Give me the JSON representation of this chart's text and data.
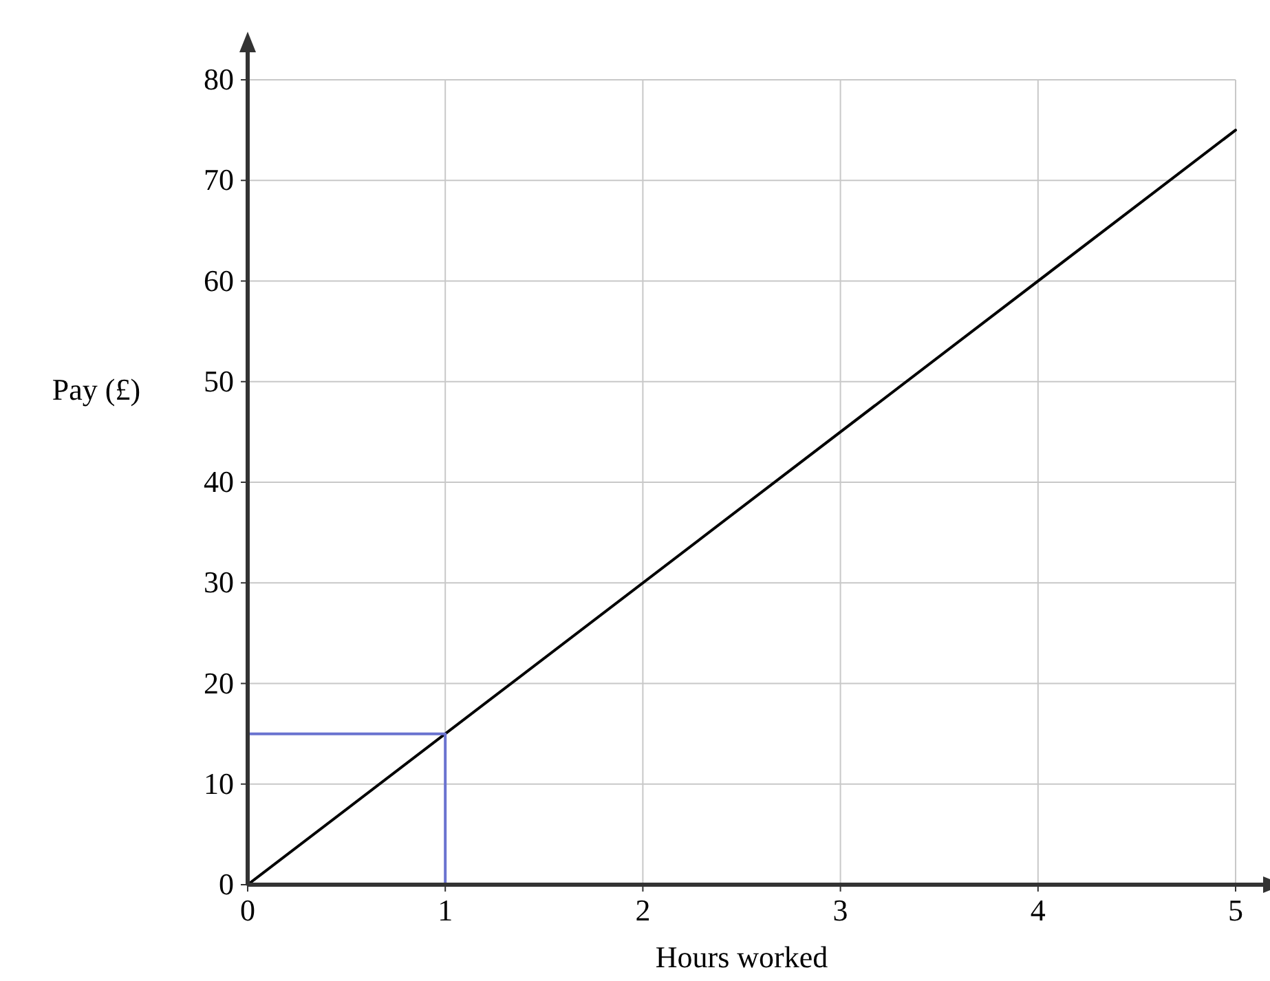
{
  "chart_data": {
    "type": "line",
    "xlabel": "Hours worked",
    "ylabel": "Pay (£)",
    "xlim": [
      0,
      5
    ],
    "ylim": [
      0,
      80
    ],
    "xticks": [
      0,
      1,
      2,
      3,
      4,
      5
    ],
    "yticks": [
      0,
      10,
      20,
      30,
      40,
      50,
      60,
      70,
      80
    ],
    "grid": true,
    "marker": "none",
    "line_style": "solid",
    "series": [
      {
        "color": "#000000",
        "x": [
          0,
          5
        ],
        "values": [
          0,
          75
        ]
      },
      {
        "color": "#6a73d0",
        "x": [
          1,
          1,
          0
        ],
        "values": [
          0,
          15,
          15
        ]
      }
    ]
  }
}
